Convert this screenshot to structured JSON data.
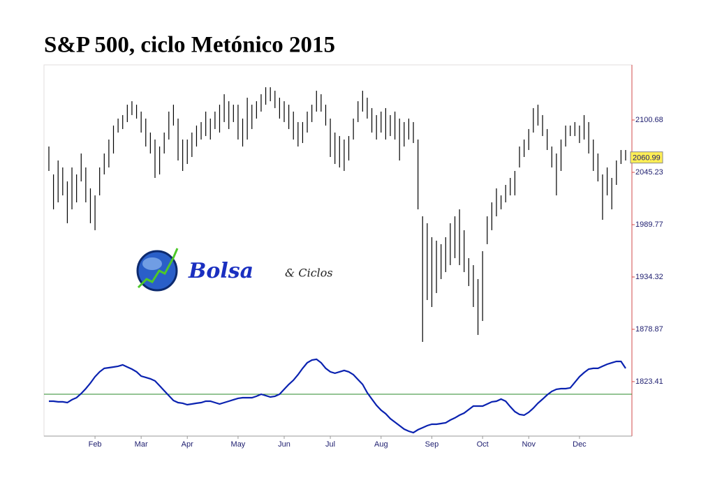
{
  "chart_data": {
    "type": "range-bar",
    "title": "S&P 500, ciclo Metónico 2015",
    "categories": [
      null,
      null,
      null,
      null,
      null,
      null,
      null,
      null,
      null,
      null,
      "Feb",
      null,
      null,
      null,
      null,
      null,
      null,
      null,
      null,
      null,
      "Mar",
      null,
      null,
      null,
      null,
      null,
      null,
      null,
      null,
      null,
      "Apr",
      null,
      null,
      null,
      null,
      null,
      null,
      null,
      null,
      null,
      null,
      "May",
      null,
      null,
      null,
      null,
      null,
      null,
      null,
      null,
      null,
      "Jun",
      null,
      null,
      null,
      null,
      null,
      null,
      null,
      null,
      null,
      "Jul",
      null,
      null,
      null,
      null,
      null,
      null,
      null,
      null,
      null,
      null,
      "Aug",
      null,
      null,
      null,
      null,
      null,
      null,
      null,
      null,
      null,
      null,
      "Sep",
      null,
      null,
      null,
      null,
      null,
      null,
      null,
      null,
      null,
      null,
      "Oct",
      null,
      null,
      null,
      null,
      null,
      null,
      null,
      null,
      null,
      "Nov",
      null,
      null,
      null,
      null,
      null,
      null,
      null,
      null,
      null,
      null,
      "Dec",
      null,
      null,
      null,
      null,
      null,
      null,
      null,
      null,
      null,
      null
    ],
    "high": [
      2072.6,
      2043.0,
      2057.8,
      2050.4,
      2035.6,
      2050.4,
      2043.0,
      2065.2,
      2050.4,
      2028.2,
      2020.8,
      2050.4,
      2065.2,
      2080.0,
      2094.8,
      2102.2,
      2105.9,
      2116.9,
      2120.6,
      2116.9,
      2109.6,
      2102.2,
      2087.4,
      2080.0,
      2072.6,
      2087.4,
      2109.6,
      2116.9,
      2102.2,
      2080.0,
      2080.0,
      2087.4,
      2094.8,
      2098.5,
      2109.6,
      2102.2,
      2109.6,
      2116.9,
      2128.0,
      2120.6,
      2116.9,
      2116.9,
      2102.2,
      2124.3,
      2116.9,
      2120.6,
      2128.0,
      2135.4,
      2135.4,
      2131.7,
      2124.3,
      2120.6,
      2116.9,
      2109.6,
      2098.5,
      2098.5,
      2109.6,
      2116.9,
      2131.7,
      2128.0,
      2116.9,
      2102.2,
      2087.4,
      2083.7,
      2080.0,
      2083.7,
      2102.2,
      2120.6,
      2131.7,
      2124.3,
      2113.3,
      2105.9,
      2109.6,
      2113.3,
      2105.9,
      2109.6,
      2102.2,
      2098.5,
      2102.2,
      2098.5,
      2080.0,
      1998.6,
      1991.3,
      1976.5,
      1972.8,
      1969.1,
      1976.5,
      1991.3,
      1998.6,
      2006.0,
      1983.9,
      1954.3,
      1946.9,
      1932.1,
      1961.7,
      1998.6,
      2013.4,
      2028.2,
      2020.8,
      2031.9,
      2039.3,
      2046.7,
      2072.6,
      2080.0,
      2091.1,
      2113.3,
      2116.9,
      2105.9,
      2091.1,
      2072.6,
      2065.2,
      2080.0,
      2094.8,
      2094.8,
      2098.5,
      2094.8,
      2105.9,
      2098.5,
      2080.0,
      2065.2,
      2043.0,
      2050.4,
      2039.3,
      2057.8,
      2068.9,
      2068.9
    ],
    "low": [
      2046.7,
      2006.0,
      2013.4,
      2020.8,
      1991.3,
      2006.0,
      2013.4,
      2035.6,
      2013.4,
      1991.3,
      1983.9,
      2020.8,
      2043.0,
      2050.4,
      2065.2,
      2087.4,
      2091.1,
      2098.5,
      2105.9,
      2102.2,
      2087.4,
      2072.6,
      2065.2,
      2039.3,
      2043.0,
      2065.2,
      2080.0,
      2094.8,
      2057.8,
      2046.7,
      2054.1,
      2061.5,
      2072.6,
      2080.0,
      2083.7,
      2080.0,
      2091.1,
      2087.4,
      2098.5,
      2091.1,
      2098.5,
      2080.0,
      2072.6,
      2080.0,
      2091.1,
      2102.2,
      2109.6,
      2116.9,
      2120.6,
      2113.3,
      2102.2,
      2098.5,
      2091.1,
      2080.0,
      2072.6,
      2076.3,
      2087.4,
      2098.5,
      2109.6,
      2109.6,
      2094.8,
      2061.5,
      2054.1,
      2050.4,
      2046.7,
      2057.8,
      2080.0,
      2098.5,
      2109.6,
      2102.2,
      2087.4,
      2080.0,
      2087.4,
      2080.0,
      2083.7,
      2080.0,
      2057.8,
      2072.6,
      2080.0,
      2076.3,
      2006.0,
      1865.5,
      1909.9,
      1902.5,
      1917.3,
      1932.1,
      1939.5,
      1946.9,
      1954.3,
      1946.9,
      1939.5,
      1924.7,
      1902.5,
      1872.9,
      1887.7,
      1969.1,
      1983.9,
      1998.6,
      2006.0,
      2013.4,
      2020.8,
      2020.8,
      2050.4,
      2061.5,
      2068.9,
      2087.4,
      2094.8,
      2083.7,
      2068.9,
      2050.4,
      2020.8,
      2046.7,
      2072.6,
      2083.7,
      2083.7,
      2076.3,
      2080.0,
      2065.2,
      2046.7,
      2035.6,
      1994.9,
      2020.8,
      2006.0,
      2031.9,
      2054.1,
      2057.8
    ],
    "color": "#000000",
    "cycle": [
      1802.7,
      1802.7,
      1802.0,
      1802.0,
      1801.2,
      1804.2,
      1806.4,
      1810.8,
      1816.0,
      1821.9,
      1828.6,
      1833.8,
      1837.5,
      1838.2,
      1838.9,
      1839.7,
      1841.2,
      1838.9,
      1836.7,
      1833.8,
      1829.3,
      1827.9,
      1826.4,
      1824.2,
      1819.0,
      1813.8,
      1808.6,
      1803.4,
      1801.2,
      1800.5,
      1799.0,
      1799.7,
      1800.5,
      1801.2,
      1802.7,
      1802.7,
      1801.2,
      1799.7,
      1801.2,
      1802.7,
      1804.2,
      1805.7,
      1806.4,
      1806.4,
      1806.4,
      1807.9,
      1810.1,
      1808.6,
      1807.1,
      1807.9,
      1810.1,
      1815.3,
      1820.5,
      1824.9,
      1830.8,
      1837.5,
      1843.4,
      1846.3,
      1847.1,
      1843.4,
      1837.5,
      1833.8,
      1832.3,
      1833.8,
      1835.3,
      1833.8,
      1830.8,
      1825.6,
      1820.5,
      1811.6,
      1804.9,
      1798.3,
      1793.1,
      1789.4,
      1784.2,
      1780.5,
      1776.8,
      1773.1,
      1770.9,
      1769.4,
      1772.4,
      1774.6,
      1776.8,
      1778.3,
      1778.3,
      1779.0,
      1779.8,
      1782.7,
      1785.0,
      1787.9,
      1790.1,
      1793.8,
      1797.5,
      1797.5,
      1797.5,
      1799.7,
      1802.0,
      1802.7,
      1804.9,
      1802.7,
      1796.8,
      1791.6,
      1788.7,
      1787.9,
      1790.9,
      1795.3,
      1800.5,
      1804.9,
      1809.4,
      1813.1,
      1815.3,
      1816.0,
      1816.0,
      1816.8,
      1822.7,
      1828.6,
      1833.0,
      1836.7,
      1837.5,
      1837.5,
      1839.7,
      1841.9,
      1843.4,
      1844.8,
      1844.8,
      1837.5
    ],
    "cycle_color": "#0a22b0",
    "reference_line": 1810.1,
    "reference_color": "#2a8a2a",
    "last_value": 2060.99,
    "last_value_color": "#ffee55",
    "ylim": [
      1765.7,
      2159.1
    ],
    "yticks": [
      1823.41,
      1878.87,
      1934.32,
      1989.77,
      2045.23,
      2100.68
    ],
    "grid": false
  },
  "logo": {
    "name": "Bolsa",
    "suffix": "& Ciclos"
  }
}
